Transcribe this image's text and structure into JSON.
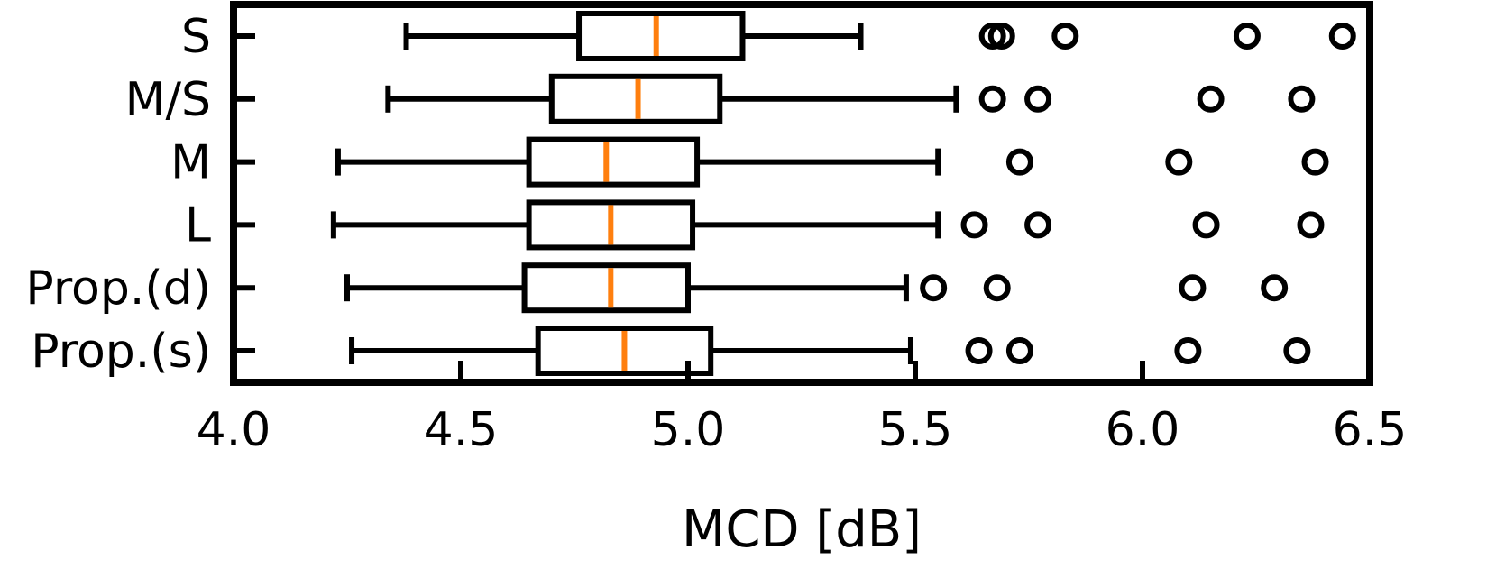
{
  "chart_data": {
    "type": "boxplot",
    "orientation": "horizontal",
    "xlabel": "MCD [dB]",
    "ylabel": "",
    "xlim": [
      4.0,
      6.5
    ],
    "xticks": [
      "4.0",
      "4.5",
      "5.0",
      "5.5",
      "6.0",
      "6.5"
    ],
    "grid": false,
    "colors": {
      "box": "#000000",
      "median": "#ff7f0e"
    },
    "categories": [
      "S",
      "M/S",
      "M",
      "L",
      "Prop.(d)",
      "Prop.(s)"
    ],
    "boxes": [
      {
        "label": "S",
        "whislo": 4.38,
        "q1": 4.76,
        "med": 4.93,
        "q3": 5.12,
        "whishi": 5.38,
        "fliers": [
          5.67,
          5.69,
          5.83,
          6.23,
          6.44
        ]
      },
      {
        "label": "M/S",
        "whislo": 4.34,
        "q1": 4.7,
        "med": 4.89,
        "q3": 5.07,
        "whishi": 5.59,
        "fliers": [
          5.67,
          5.77,
          6.15,
          6.35
        ]
      },
      {
        "label": "M",
        "whislo": 4.23,
        "q1": 4.65,
        "med": 4.82,
        "q3": 5.02,
        "whishi": 5.55,
        "fliers": [
          5.73,
          6.08,
          6.38
        ]
      },
      {
        "label": "L",
        "whislo": 4.22,
        "q1": 4.65,
        "med": 4.83,
        "q3": 5.01,
        "whishi": 5.55,
        "fliers": [
          5.63,
          5.77,
          6.14,
          6.37
        ]
      },
      {
        "label": "Prop.(d)",
        "whislo": 4.25,
        "q1": 4.64,
        "med": 4.83,
        "q3": 5.0,
        "whishi": 5.48,
        "fliers": [
          5.54,
          5.68,
          6.11,
          6.29
        ]
      },
      {
        "label": "Prop.(s)",
        "whislo": 4.26,
        "q1": 4.67,
        "med": 4.86,
        "q3": 5.05,
        "whishi": 5.49,
        "fliers": [
          5.64,
          5.73,
          6.1,
          6.34
        ]
      }
    ]
  }
}
